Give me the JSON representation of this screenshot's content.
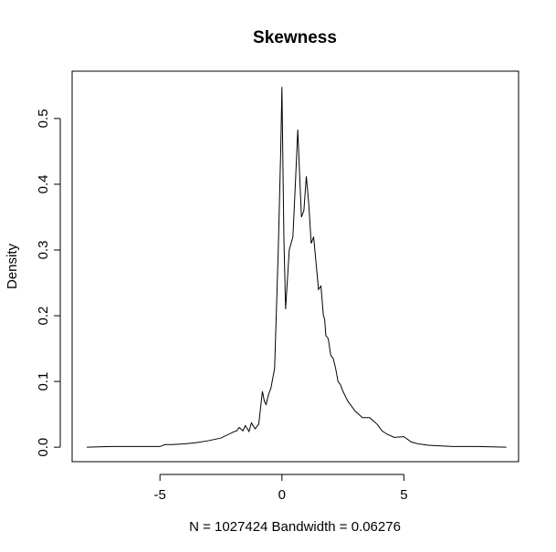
{
  "chart_data": {
    "type": "line",
    "title": "Skewness",
    "xlabel": "N = 1027424   Bandwidth = 0.06276",
    "ylabel": "Density",
    "xlim": [
      -8.6,
      9.7
    ],
    "ylim": [
      -0.022,
      0.572
    ],
    "x_ticks": [
      -5,
      0,
      5
    ],
    "x_tick_labels": [
      "-5",
      "0",
      "5"
    ],
    "y_ticks": [
      0.0,
      0.1,
      0.2,
      0.3,
      0.4,
      0.5
    ],
    "y_tick_labels": [
      "0.0",
      "0.1",
      "0.2",
      "0.3",
      "0.4",
      "0.5"
    ],
    "grid": false,
    "series": [
      {
        "x": [
          -8.0,
          -7.0,
          -6.0,
          -5.0,
          -4.8,
          -4.5,
          -4.0,
          -3.5,
          -3.0,
          -2.5,
          -2.0,
          -1.85,
          -1.75,
          -1.6,
          -1.5,
          -1.35,
          -1.25,
          -1.1,
          -0.95,
          -0.8,
          -0.72,
          -0.65,
          -0.55,
          -0.45,
          -0.3,
          -0.15,
          -0.05,
          0.0,
          0.08,
          0.15,
          0.2,
          0.3,
          0.45,
          0.55,
          0.65,
          0.72,
          0.8,
          0.9,
          1.0,
          1.1,
          1.2,
          1.3,
          1.4,
          1.5,
          1.6,
          1.7,
          1.75,
          1.8,
          1.9,
          2.0,
          2.1,
          2.2,
          2.3,
          2.4,
          2.5,
          2.7,
          3.0,
          3.3,
          3.6,
          3.9,
          4.1,
          4.3,
          4.6,
          5.0,
          5.3,
          5.6,
          6.0,
          7.0,
          8.0,
          9.2
        ],
        "y": [
          0.0,
          0.001,
          0.001,
          0.001,
          0.004,
          0.004,
          0.005,
          0.007,
          0.01,
          0.014,
          0.023,
          0.025,
          0.03,
          0.025,
          0.033,
          0.024,
          0.037,
          0.028,
          0.035,
          0.085,
          0.07,
          0.065,
          0.08,
          0.09,
          0.12,
          0.3,
          0.45,
          0.548,
          0.32,
          0.21,
          0.24,
          0.3,
          0.32,
          0.4,
          0.483,
          0.42,
          0.35,
          0.36,
          0.412,
          0.37,
          0.31,
          0.32,
          0.28,
          0.24,
          0.245,
          0.2,
          0.195,
          0.17,
          0.165,
          0.14,
          0.135,
          0.12,
          0.1,
          0.095,
          0.085,
          0.07,
          0.055,
          0.045,
          0.045,
          0.035,
          0.025,
          0.02,
          0.015,
          0.016,
          0.008,
          0.005,
          0.003,
          0.001,
          0.001,
          0.0
        ]
      }
    ]
  }
}
